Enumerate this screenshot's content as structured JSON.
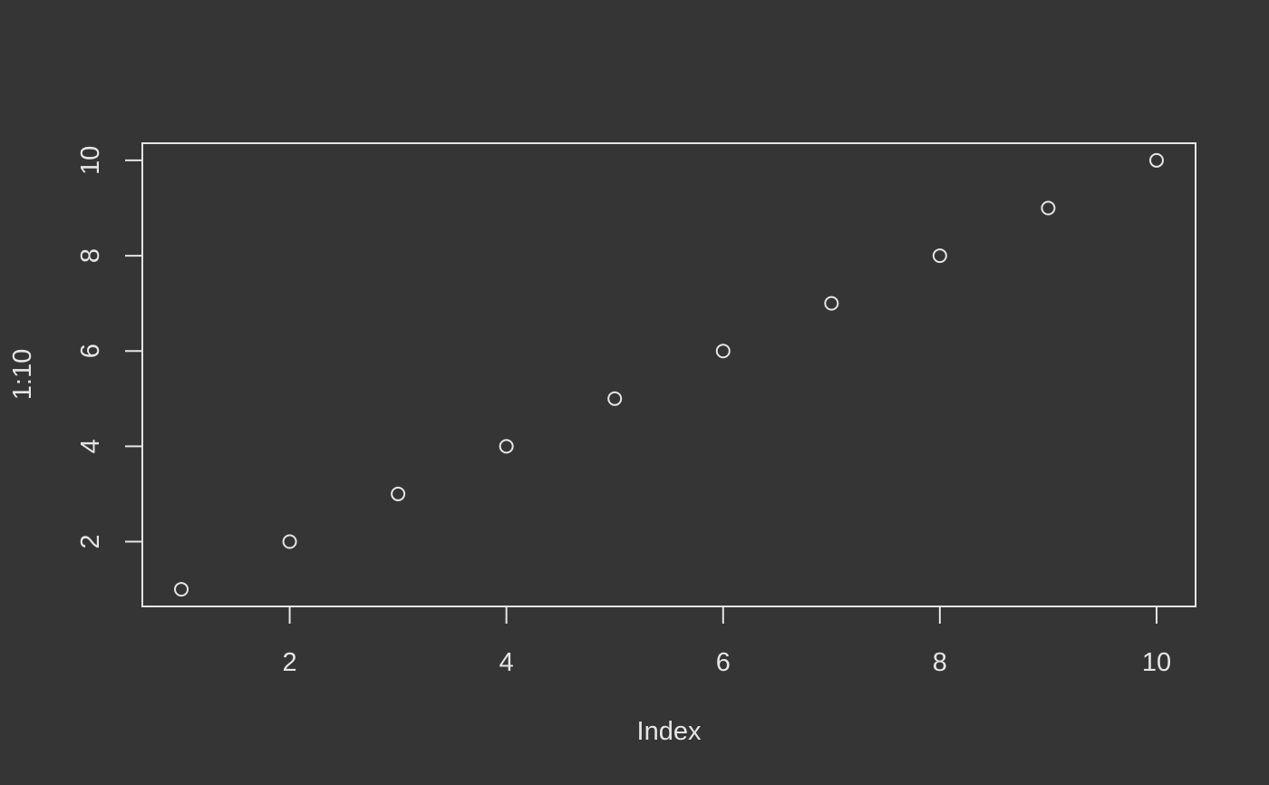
{
  "chart_data": {
    "type": "scatter",
    "x": [
      1,
      2,
      3,
      4,
      5,
      6,
      7,
      8,
      9,
      10
    ],
    "y": [
      1,
      2,
      3,
      4,
      5,
      6,
      7,
      8,
      9,
      10
    ],
    "xlabel": "Index",
    "ylabel": "1:10",
    "xlim": [
      0.64,
      10.36
    ],
    "ylim": [
      0.64,
      10.36
    ],
    "x_ticks": [
      2,
      4,
      6,
      8,
      10
    ],
    "y_ticks": [
      2,
      4,
      6,
      8,
      10
    ],
    "x_tick_labels": [
      "2",
      "4",
      "6",
      "8",
      "10"
    ],
    "y_tick_labels": [
      "2",
      "4",
      "6",
      "8",
      "10"
    ],
    "marker": "open-circle",
    "grid": false,
    "legend": "none"
  },
  "colors": {
    "background": "#353535",
    "foreground": "#e5e5e5"
  }
}
